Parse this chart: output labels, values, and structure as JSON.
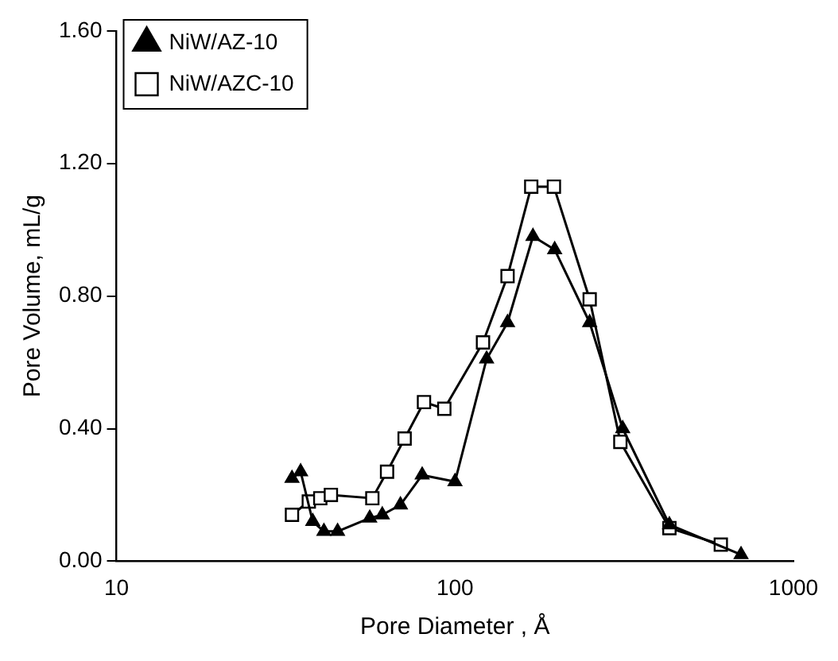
{
  "chart_data": {
    "type": "line",
    "xlabel": "Pore Diameter , Å",
    "ylabel": "Pore Volume, mL/g",
    "log": "x",
    "xlim": [
      10,
      1000
    ],
    "xticks": [
      10,
      100,
      1000
    ],
    "ylim": [
      0,
      1.6
    ],
    "yticks": [
      {
        "value": 0,
        "label": "0.00"
      },
      {
        "value": 0.4,
        "label": "0.40"
      },
      {
        "value": 0.8,
        "label": "0.80"
      },
      {
        "value": 1.2,
        "label": "1.20"
      },
      {
        "value": 1.6,
        "label": "1.60"
      }
    ],
    "grid": false,
    "legend": "top left",
    "line_style": "solid",
    "series": [
      {
        "name": "NiW/AZ-10",
        "color": "#000000",
        "marker": "triangle",
        "x": [
          33,
          35,
          38,
          41,
          45,
          56,
          61,
          69,
          80,
          100,
          124,
          143,
          170,
          197,
          250,
          313,
          430,
          700
        ],
        "values": [
          0.25,
          0.27,
          0.12,
          0.09,
          0.09,
          0.13,
          0.14,
          0.17,
          0.26,
          0.24,
          0.61,
          0.72,
          0.98,
          0.94,
          0.72,
          0.4,
          0.11,
          0.02
        ]
      },
      {
        "name": "NiW/AZC-10",
        "color": "#000000",
        "marker": "square",
        "x": [
          33,
          37,
          40,
          43,
          57,
          63,
          71,
          81,
          93,
          121,
          143,
          168,
          196,
          250,
          308,
          430,
          610
        ],
        "values": [
          0.14,
          0.18,
          0.19,
          0.2,
          0.19,
          0.27,
          0.37,
          0.48,
          0.46,
          0.66,
          0.86,
          1.13,
          1.13,
          0.79,
          0.36,
          0.1,
          0.05
        ]
      }
    ]
  }
}
